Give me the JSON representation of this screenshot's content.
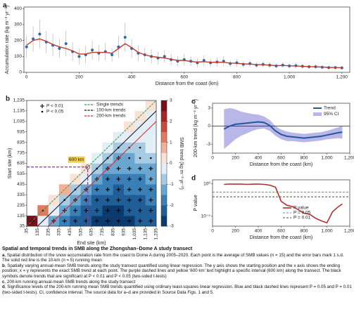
{
  "chart_data": [
    {
      "type": "scatter",
      "panel": "a",
      "ylabel": "Accumulation rate (kg m⁻² yr⁻¹)",
      "xlabel": "Distance from the coast (km)",
      "x": [
        0,
        25,
        50,
        75,
        100,
        125,
        150,
        175,
        200,
        225,
        250,
        275,
        300,
        325,
        350,
        375,
        400,
        425,
        450,
        475,
        500,
        525,
        550,
        575,
        600,
        625,
        650,
        675,
        700,
        725,
        750,
        775,
        800,
        825,
        850,
        875,
        900,
        925,
        950,
        975,
        1000,
        1025,
        1050,
        1075,
        1100,
        1125,
        1150,
        1175,
        1200
      ],
      "values": [
        160,
        210,
        240,
        190,
        170,
        150,
        180,
        130,
        100,
        110,
        140,
        120,
        130,
        110,
        160,
        220,
        150,
        120,
        110,
        100,
        90,
        100,
        80,
        70,
        80,
        70,
        60,
        75,
        60,
        65,
        70,
        55,
        60,
        50,
        55,
        45,
        50,
        45,
        40,
        45,
        40,
        42,
        38,
        35,
        35,
        32,
        30,
        30,
        28
      ],
      "errors": [
        70,
        80,
        90,
        70,
        70,
        60,
        80,
        60,
        50,
        55,
        60,
        50,
        55,
        45,
        70,
        90,
        60,
        50,
        45,
        45,
        40,
        40,
        35,
        30,
        35,
        30,
        28,
        32,
        25,
        28,
        30,
        22,
        25,
        20,
        22,
        18,
        20,
        18,
        16,
        18,
        16,
        16,
        15,
        14,
        14,
        12,
        12,
        12,
        11
      ],
      "running_mean": [
        170,
        200,
        210,
        195,
        175,
        160,
        150,
        135,
        115,
        115,
        125,
        125,
        125,
        120,
        150,
        180,
        155,
        125,
        110,
        100,
        95,
        90,
        82,
        75,
        75,
        68,
        65,
        67,
        63,
        64,
        63,
        58,
        57,
        53,
        52,
        48,
        48,
        45,
        42,
        43,
        41,
        40,
        38,
        36,
        35,
        33,
        31,
        30,
        29
      ],
      "color": "#2b6cb0",
      "error_color": "#aaaaaa",
      "line_color": "#c0392b",
      "xlim": [
        -10,
        1230
      ],
      "xticks": [
        0,
        200,
        400,
        600,
        800,
        {
          "value": 1000,
          "label": "1,000"
        },
        {
          "value": 1200,
          "label": "1,200"
        }
      ],
      "ylim": [
        0,
        410
      ],
      "yticks": [
        0,
        100,
        200,
        300,
        400
      ]
    },
    {
      "type": "heatmap",
      "panel": "b",
      "xlabel": "End site (km)",
      "ylabel": "Start site (km)",
      "colorbar_label": "SMB trend (kg m⁻² yr⁻²)",
      "xlim": [
        35,
        1235
      ],
      "ylim": [
        35,
        1235
      ],
      "xticks": [
        35,
        135,
        235,
        335,
        435,
        535,
        635,
        735,
        835,
        935,
        {
          "value": 1035,
          "label": "1,035"
        },
        {
          "value": 1135,
          "label": "1,135"
        },
        {
          "value": 1235,
          "label": "1,235"
        }
      ],
      "yticks": [
        35,
        135,
        235,
        335,
        435,
        535,
        635,
        735,
        835,
        935,
        {
          "value": 1035,
          "label": "1,035"
        },
        {
          "value": 1135,
          "label": "1,135"
        },
        {
          "value": 1235,
          "label": "1,235"
        }
      ],
      "bins": [
        35,
        135,
        235,
        335,
        435,
        535,
        635,
        735,
        835,
        935,
        1035,
        1135,
        1235
      ],
      "z": [
        [
          2.5,
          -0.5,
          -1.5,
          -2,
          -2.3,
          -2.5,
          -2.7,
          -2.8,
          -2.8,
          -2.6,
          -2.5,
          -2.4
        ],
        [
          null,
          1.0,
          -0.5,
          -1.2,
          -1.8,
          -2.2,
          -2.5,
          -2.6,
          -2.6,
          -2.5,
          -2.3,
          -2.2
        ],
        [
          null,
          null,
          0.3,
          -0.8,
          -1.3,
          -1.8,
          -2.2,
          -2.4,
          -2.4,
          -2.3,
          -2.1,
          -2.0
        ],
        [
          null,
          null,
          null,
          0.5,
          -0.6,
          -1.2,
          -1.7,
          -2.0,
          -2.1,
          -2.0,
          -1.9,
          -1.8
        ],
        [
          null,
          null,
          null,
          null,
          0.4,
          -0.5,
          -1.2,
          -1.6,
          -1.8,
          -1.7,
          -1.6,
          -1.5
        ],
        [
          null,
          null,
          null,
          null,
          null,
          0.2,
          -0.8,
          -1.3,
          -1.5,
          -1.4,
          -1.3,
          -1.2
        ],
        [
          null,
          null,
          null,
          null,
          null,
          null,
          -0.3,
          -1.0,
          -1.2,
          -1.1,
          -1.0,
          -0.9
        ],
        [
          null,
          null,
          null,
          null,
          null,
          null,
          null,
          -0.5,
          -0.8,
          -0.7,
          -0.6,
          -0.5
        ],
        [
          null,
          null,
          null,
          null,
          null,
          null,
          null,
          null,
          -0.2,
          -0.4,
          -0.4,
          -0.3
        ],
        [
          null,
          null,
          null,
          null,
          null,
          null,
          null,
          null,
          null,
          0.1,
          -0.2,
          -0.2
        ],
        [
          null,
          null,
          null,
          null,
          null,
          null,
          null,
          null,
          null,
          null,
          0.2,
          -0.1
        ],
        [
          null,
          null,
          null,
          null,
          null,
          null,
          null,
          null,
          null,
          null,
          null,
          0.3
        ]
      ],
      "significance": [
        [
          0.01,
          null,
          0.01,
          0.01,
          0.01,
          0.01,
          0.01,
          0.01,
          0.01,
          0.01,
          0.01,
          0.01
        ],
        [
          null,
          0.05,
          null,
          0.01,
          0.01,
          0.01,
          0.01,
          0.01,
          0.01,
          0.01,
          0.01,
          0.01
        ],
        [
          null,
          null,
          null,
          0.05,
          0.01,
          0.01,
          0.01,
          0.01,
          0.01,
          0.01,
          0.01,
          0.01
        ],
        [
          null,
          null,
          null,
          null,
          0.05,
          0.01,
          0.01,
          0.01,
          0.01,
          0.01,
          0.01,
          0.01
        ],
        [
          null,
          null,
          null,
          null,
          null,
          null,
          0.01,
          0.01,
          0.01,
          0.01,
          0.01,
          0.01
        ],
        [
          null,
          null,
          null,
          null,
          null,
          null,
          0.05,
          0.01,
          0.01,
          0.01,
          0.01,
          0.01
        ],
        [
          null,
          null,
          null,
          null,
          null,
          null,
          null,
          0.05,
          0.01,
          0.05,
          0.05,
          0.05
        ],
        [
          null,
          null,
          null,
          null,
          null,
          null,
          null,
          null,
          0.05,
          0.05,
          0.05,
          null
        ],
        [
          null,
          null,
          null,
          null,
          null,
          null,
          null,
          null,
          null,
          null,
          null,
          null
        ],
        [
          null,
          null,
          null,
          null,
          null,
          null,
          null,
          null,
          null,
          null,
          null,
          null
        ],
        [
          null,
          null,
          null,
          null,
          null,
          null,
          null,
          null,
          null,
          null,
          null,
          null
        ],
        [
          null,
          null,
          null,
          null,
          null,
          null,
          null,
          null,
          null,
          null,
          null,
          null
        ]
      ],
      "sig_legend": [
        {
          "label": "P < 0.01",
          "value": 0.01
        },
        {
          "label": "P < 0.05",
          "value": 0.05
        }
      ],
      "trend_lines": [
        {
          "name": "Single trends",
          "color": "#2e9e4f",
          "offset": 0
        },
        {
          "name": "100-km trends",
          "color": "#111111",
          "offset": 100
        },
        {
          "name": "200-km trends",
          "color": "#d62828",
          "offset": 200
        }
      ],
      "annotation": {
        "text": "600 km",
        "value": 600,
        "color": "#7b3fa0",
        "box_color": "#f4d03f"
      },
      "clim": [
        -3,
        3
      ],
      "cticks": [
        -3,
        -2,
        -1,
        0,
        1,
        2,
        3
      ],
      "colormap": [
        "#0b3a6e",
        "#1f5e96",
        "#3a7fb6",
        "#6aa7d0",
        "#a7cbe3",
        "#e3eef7",
        "#fbe2d7",
        "#f3b099",
        "#e27a5f",
        "#c94a3a",
        "#a5242a",
        "#7a0f1c"
      ]
    },
    {
      "type": "band",
      "panel": "c",
      "xlabel": "Distance from the coast (km)",
      "ylabel": "200-km trend (kg m⁻² yr⁻²)",
      "x": [
        100,
        150,
        200,
        250,
        300,
        350,
        400,
        450,
        500,
        550,
        600,
        650,
        700,
        750,
        800,
        850,
        900,
        950,
        1000,
        1050,
        1100,
        1135
      ],
      "series": [
        {
          "name": "Trend",
          "color": "#1f5a99",
          "values": [
            -0.5,
            0,
            0.3,
            0.4,
            0.5,
            0.6,
            0.7,
            0.6,
            0.1,
            -0.8,
            -1.4,
            -1.7,
            -1.8,
            -1.9,
            -2.0,
            -1.9,
            -1.8,
            -1.7,
            -1.5,
            -1.3,
            -1.1,
            -1.0
          ]
        }
      ],
      "ci": {
        "name": "95% CI",
        "color": "#b9b6ea",
        "upper": [
          2.8,
          3.0,
          2.8,
          2.4,
          2.2,
          2.0,
          1.9,
          1.6,
          1.0,
          0.0,
          -0.6,
          -0.9,
          -1.1,
          -1.2,
          -1.3,
          -1.2,
          -1.1,
          -1.0,
          -0.8,
          -0.5,
          -0.2,
          0.1
        ],
        "lower": [
          -3.8,
          -3.0,
          -2.2,
          -1.6,
          -1.2,
          -0.8,
          -0.5,
          -0.4,
          -0.8,
          -1.6,
          -2.2,
          -2.5,
          -2.5,
          -2.6,
          -2.7,
          -2.6,
          -2.5,
          -2.4,
          -2.2,
          -2.1,
          -2.0,
          -2.1
        ]
      },
      "xlim": [
        0,
        1200
      ],
      "xticks": [
        0,
        200,
        400,
        600,
        800,
        {
          "value": 1000,
          "label": "1,000"
        },
        {
          "value": 1200,
          "label": "1,200"
        }
      ],
      "ylim": [
        -4.5,
        3.8
      ],
      "yticks": [
        -3,
        0,
        3
      ]
    },
    {
      "type": "line",
      "panel": "d",
      "xlabel": "Distance from the coast (km)",
      "ylabel": "P value",
      "log": true,
      "x": [
        100,
        150,
        200,
        250,
        300,
        350,
        400,
        450,
        500,
        550,
        600,
        650,
        700,
        750,
        800,
        850,
        900,
        950,
        1000,
        1050,
        1100,
        1135
      ],
      "series": [
        {
          "name": "P value",
          "color": "#b03030",
          "values": [
            0.8,
            0.9,
            0.85,
            0.9,
            0.8,
            0.85,
            0.9,
            0.8,
            0.6,
            0.3,
            0.002,
            0.0005,
            0.0003,
            0.0001,
            3e-05,
            2e-05,
            5e-06,
            2e-06,
            1e-06,
            5e-05,
            0.0003,
            0.0008
          ]
        }
      ],
      "ref_lines": [
        {
          "name": "P = 0.05",
          "value": 0.05,
          "color": "#3060c0"
        },
        {
          "name": "P = 0.01",
          "value": 0.01,
          "color": "#111111"
        }
      ],
      "xlim": [
        0,
        1200
      ],
      "xticks": [
        0,
        200,
        400,
        600,
        800,
        {
          "value": 1000,
          "label": "1,000"
        },
        {
          "value": 1200,
          "label": "1,200"
        }
      ],
      "ylim": [
        3e-07,
        4
      ],
      "yticks": [
        {
          "value": 1,
          "label": "10⁰"
        },
        {
          "value": 1e-05,
          "label": "10⁻⁵"
        }
      ]
    }
  ],
  "caption": {
    "title": "Spatial and temporal trends in SMB along the Zhongshan–Dome A study transect",
    "items": [
      {
        "label": "a",
        "text": ", Spatial distribution of the snow accumulation rate from the coast to Dome A during 2005–2020. Each point is the average of SMB values (n = 15) and the error bars mark 1 s.d. The solid red line is the 10-km (n = 5) running mean"
      },
      {
        "label": "b",
        "text": ", Spatially varying annual-mean SMB trends along the study transect quantified using linear regression. The y axis shows the starting position and the x axis shows the ending position; x = y represents the exact SMB trend at each point. The purple dashed lines and yellow ‘600 km’ text highlight a specific interval (600 km) along the transect. The black symbols denote trends that are significant at P < 0.01 and P < 0.05 (two-sided t-tests)"
      },
      {
        "label": "c",
        "text": ", 200-km running annual-mean SMB trends along the study transect"
      },
      {
        "label": "d",
        "text": ", Significance levels of the 200-km running mean SMB trends quantified using ordinary least-squares linear regression. Blue and black dashed lines represent P = 0.05 and P = 0.01 (two-sided t-tests). CI, confidence interval. The source data for a–d are provided in Source Data Figs. 1 and 5."
      }
    ]
  }
}
